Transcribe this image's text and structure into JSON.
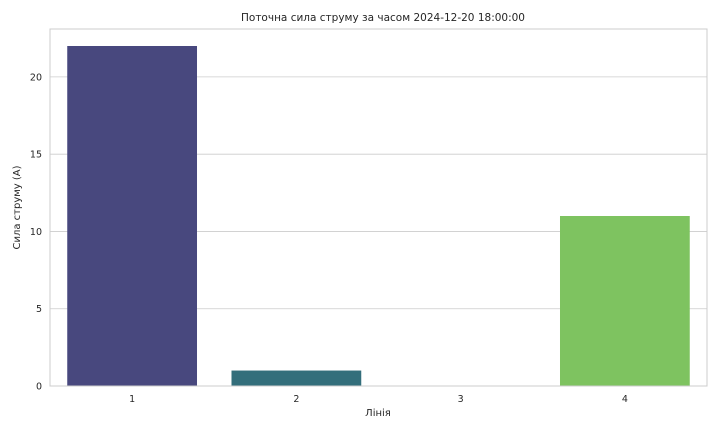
{
  "chart_data": {
    "type": "bar",
    "title": "Поточна сила струму за часом 2024-12-20 18:00:00",
    "xlabel": "Лінія",
    "ylabel": "Сила струму (A)",
    "categories": [
      "1",
      "2",
      "3",
      "4"
    ],
    "values": [
      22,
      1,
      0,
      11
    ],
    "colors": [
      "#48487e",
      "#336e7b",
      "#2a9e85",
      "#7ec360"
    ],
    "ylim": [
      0,
      23.1
    ],
    "yticks": [
      0,
      5,
      10,
      15,
      20
    ],
    "grid": true,
    "legend": "none"
  }
}
